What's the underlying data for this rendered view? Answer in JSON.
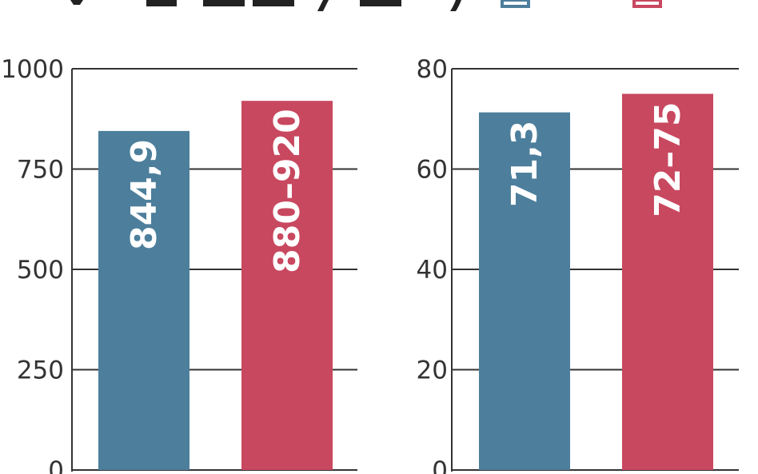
{
  "chart_data": [
    {
      "type": "bar",
      "categories": [
        "",
        ""
      ],
      "values": [
        844.9,
        920
      ],
      "value_labels": [
        "844,9",
        "880–920"
      ],
      "bar_colors": [
        "#4d7f9c",
        "#c84860"
      ],
      "ylim": [
        0,
        1000
      ],
      "yticks": [
        0,
        250,
        500,
        750,
        1000
      ],
      "ytick_labels": [
        "0",
        "250",
        "500",
        "750",
        "1000"
      ],
      "grid": true
    },
    {
      "type": "bar",
      "categories": [
        "",
        ""
      ],
      "values": [
        71.3,
        75
      ],
      "value_labels": [
        "71,3",
        "72–75"
      ],
      "bar_colors": [
        "#4d7f9c",
        "#c84860"
      ],
      "ylim": [
        0,
        80
      ],
      "yticks": [
        0,
        20,
        40,
        60,
        80
      ],
      "ytick_labels": [
        "0",
        "20",
        "40",
        "60",
        "80"
      ],
      "grid": true
    }
  ],
  "colors": {
    "series_a": "#4d7f9c",
    "series_b": "#c84860",
    "axis": "#333333"
  }
}
